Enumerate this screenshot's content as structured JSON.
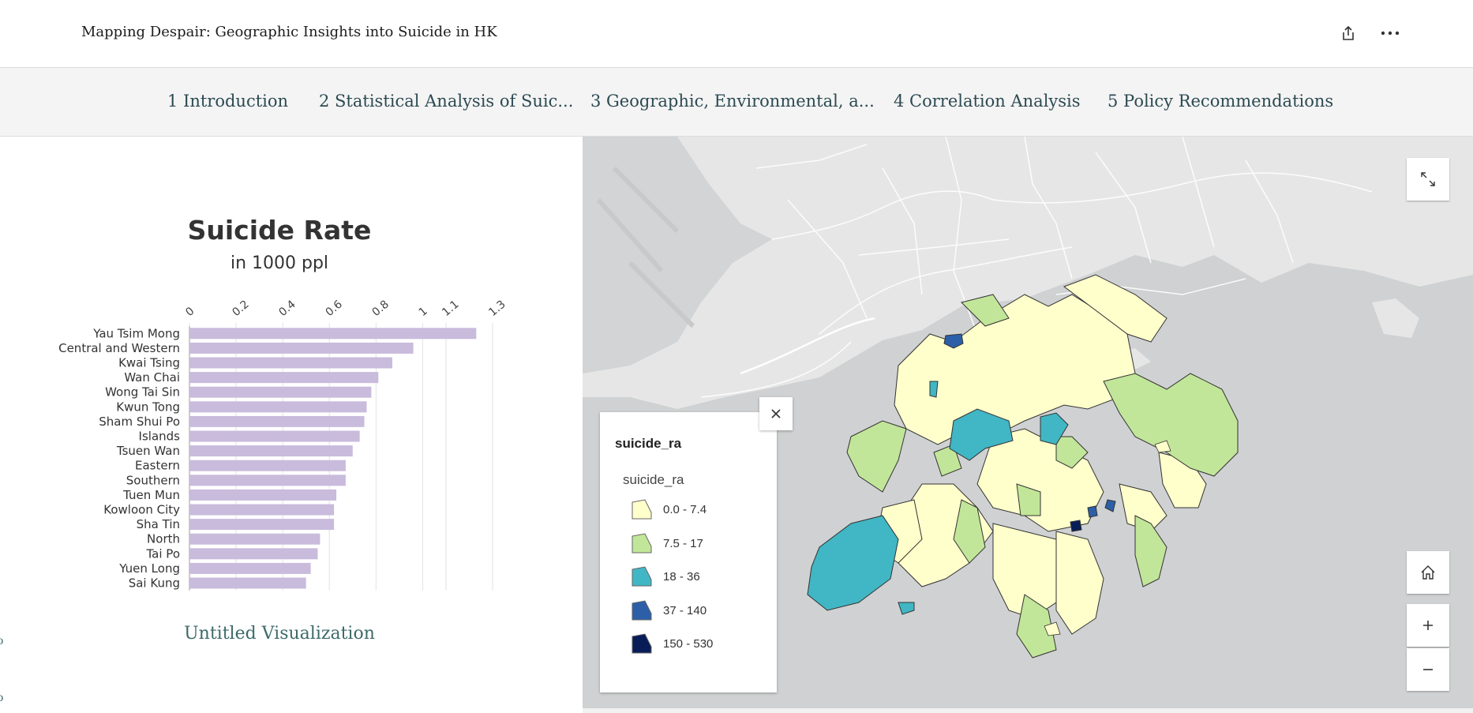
{
  "header": {
    "title": "Mapping Despair: Geographic Insights into Suicide in HK"
  },
  "nav": {
    "items": [
      "1 Introduction",
      "2 Statistical Analysis of Suic...",
      "3 Geographic, Environmental, a...",
      "4 Correlation Analysis",
      "5 Policy Recommendations"
    ]
  },
  "left": {
    "caption": "Untitled Visualization",
    "edge_marks": [
      "o",
      "o"
    ]
  },
  "chart_data": {
    "type": "bar",
    "orientation": "horizontal",
    "title": "Suicide Rate",
    "subtitle": "in 1000 ppl",
    "x_ticks": [
      "0",
      "0.2",
      "0.4",
      "0.6",
      "0.8",
      "1",
      "1.1",
      "1.3"
    ],
    "xlim": [
      0,
      1.3
    ],
    "grid": true,
    "bar_color": "#c9bbdc",
    "categories": [
      "Yau Tsim Mong",
      "Central and Western",
      "Kwai Tsing",
      "Wan Chai",
      "Wong Tai Sin",
      "Kwun Tong",
      "Sham Shui Po",
      "Islands",
      "Tsuen Wan",
      "Eastern",
      "Southern",
      "Tuen Mun",
      "Kowloon City",
      "Sha Tin",
      "North",
      "Tai Po",
      "Yuen Long",
      "Sai Kung"
    ],
    "values": [
      1.23,
      0.96,
      0.87,
      0.81,
      0.78,
      0.76,
      0.75,
      0.73,
      0.7,
      0.67,
      0.67,
      0.63,
      0.62,
      0.62,
      0.56,
      0.55,
      0.52,
      0.5
    ]
  },
  "map": {
    "legend": {
      "title": "suicide_ra",
      "subtitle": "suicide_ra",
      "classes": [
        {
          "label": "0.0 - 7.4",
          "color": "#ffffcc"
        },
        {
          "label": "7.5 - 17",
          "color": "#c2e699"
        },
        {
          "label": "18 - 36",
          "color": "#41b6c4"
        },
        {
          "label": "37 - 140",
          "color": "#2c5fa8"
        },
        {
          "label": "150 - 530",
          "color": "#081d58"
        }
      ]
    }
  }
}
